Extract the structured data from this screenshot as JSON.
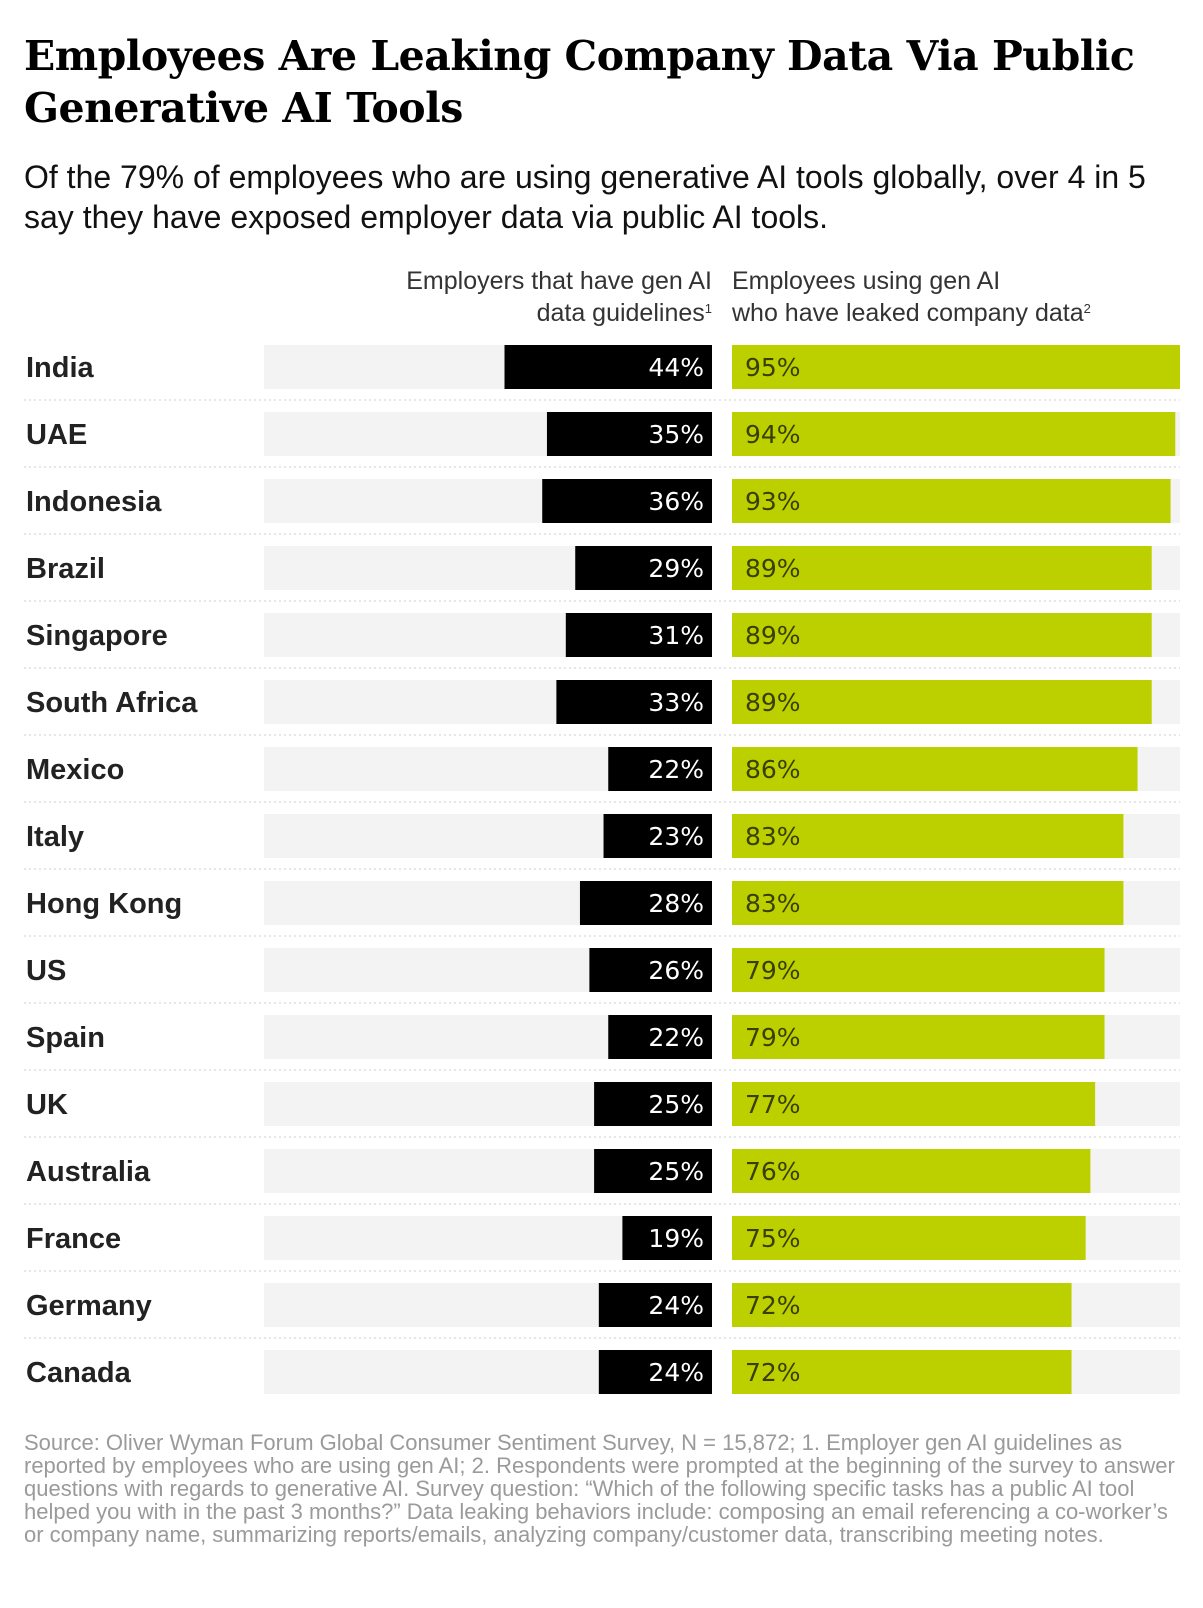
{
  "chart_data": {
    "type": "bar",
    "title": "Employees Are Leaking Company Data Via Public Generative AI Tools",
    "subtitle": "Of the 79% of employees who are using generative AI tools globally, over 4 in 5 say they have exposed employer data via public AI tools.",
    "categories": [
      "India",
      "UAE",
      "Indonesia",
      "Brazil",
      "Singapore",
      "South Africa",
      "Mexico",
      "Italy",
      "Hong Kong",
      "US",
      "Spain",
      "UK",
      "Australia",
      "France",
      "Germany",
      "Canada"
    ],
    "series": [
      {
        "name_line1": "Employers that have gen AI",
        "name_line2": "data guidelines",
        "footnote": "1",
        "color": "#000000",
        "values": [
          44,
          35,
          36,
          29,
          31,
          33,
          22,
          23,
          28,
          26,
          22,
          25,
          25,
          19,
          24,
          24
        ],
        "labels": [
          "44%",
          "35%",
          "36%",
          "29%",
          "31%",
          "33%",
          "22%",
          "23%",
          "28%",
          "26%",
          "22%",
          "25%",
          "25%",
          "19%",
          "24%",
          "24%"
        ]
      },
      {
        "name_line1": "Employees using gen AI",
        "name_line2": "who have leaked company data",
        "footnote": "2",
        "color": "#bcd000",
        "values": [
          95,
          94,
          93,
          89,
          89,
          89,
          86,
          83,
          83,
          79,
          79,
          77,
          76,
          75,
          72,
          72
        ],
        "labels": [
          "95%",
          "94%",
          "93%",
          "89%",
          "89%",
          "89%",
          "86%",
          "83%",
          "83%",
          "79%",
          "79%",
          "77%",
          "76%",
          "75%",
          "72%",
          "72%"
        ]
      }
    ],
    "left_axis_max": 95,
    "right_axis_max": 95,
    "track_color": "#f3f3f3",
    "divider_color": "#cccccc"
  },
  "source": "Source: Oliver Wyman Forum Global Consumer Sentiment Survey, N = 15,872; 1. Employer gen AI guidelines as reported by employees who are using gen AI; 2. Respondents were prompted at the beginning of the survey to answer questions with regards to generative AI. Survey question: “Which of the following specific tasks has a public AI tool helped you with in the past 3 months?” Data leaking behaviors include: composing an email referencing a co-worker’s or company name, summarizing reports/emails, analyzing company/customer data, transcribing meeting notes."
}
